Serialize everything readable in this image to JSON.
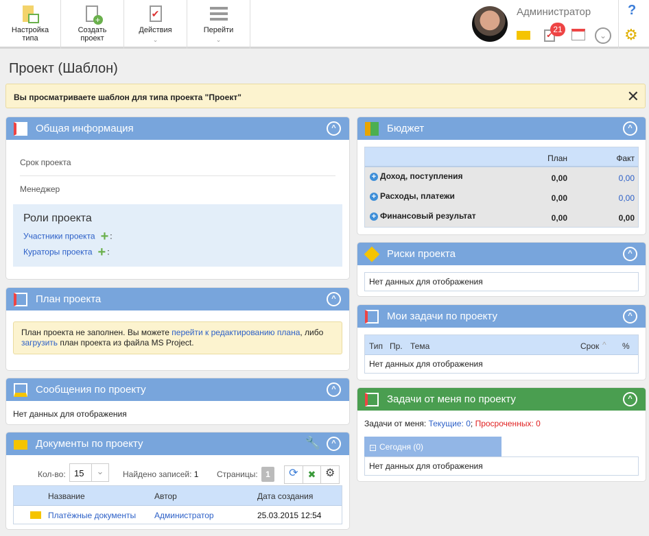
{
  "toolbar": {
    "items": [
      {
        "label1": "Настройка",
        "label2": "типа"
      },
      {
        "label1": "Создать",
        "label2": "проект"
      },
      {
        "label1": "Действия"
      },
      {
        "label1": "Перейти"
      }
    ],
    "user": "Администратор",
    "badge": "21"
  },
  "page_title": "Проект (Шаблон)",
  "banner": "Вы просматриваете шаблон для типа проекта \"Проект\"",
  "general": {
    "title": "Общая информация",
    "fields": [
      "Срок проекта",
      "Менеджер"
    ],
    "roles_title": "Роли проекта",
    "roles": [
      "Участники проекта",
      "Кураторы проекта"
    ],
    "colon": ":"
  },
  "plan": {
    "title": "План проекта",
    "t1": "План проекта не заполнен. Вы можете ",
    "link1": "перейти к редактированию плана",
    "t2": ", либо",
    "link2": "загрузить",
    "t3": " план проекта из файла MS Project."
  },
  "messages": {
    "title": "Сообщения по проекту",
    "empty": "Нет данных для отображения"
  },
  "docs": {
    "title": "Документы по проекту",
    "count_label": "Кол-во:",
    "count": "15",
    "found_label": "Найдено записей:",
    "found": "1",
    "pages_label": "Страницы:",
    "page": "1",
    "columns": [
      "Название",
      "Автор",
      "Дата создания"
    ],
    "rows": [
      {
        "name": "Платёжные документы",
        "author": "Администратор",
        "date": "25.03.2015 12:54"
      }
    ]
  },
  "budget": {
    "title": "Бюджет",
    "columns": [
      "План",
      "Факт"
    ],
    "rows": [
      {
        "label": "Доход, поступления",
        "plan": "0,00",
        "fact": "0,00"
      },
      {
        "label": "Расходы, платежи",
        "plan": "0,00",
        "fact": "0,00"
      },
      {
        "label": "Финансовый результат",
        "plan": "0,00",
        "fact": "0,00"
      }
    ]
  },
  "risks": {
    "title": "Риски проекта",
    "empty": "Нет данных для отображения"
  },
  "mytasks": {
    "title": "Мои задачи по проекту",
    "columns": [
      "Тип",
      "Пр.",
      "Тема",
      "Срок",
      "%"
    ],
    "empty": "Нет данных для отображения"
  },
  "fromme": {
    "title": "Задачи от меня по проекту",
    "label": "Задачи от меня: ",
    "current": "Текущие: 0",
    "sep": "; ",
    "overdue": "Просроченных: 0",
    "group": "Сегодня (0)",
    "empty": "Нет данных для отображения"
  },
  "colors": {
    "header": "#78a5dc",
    "green": "#4a9e50",
    "link": "#2b5fc7",
    "overdue": "#e02020"
  }
}
